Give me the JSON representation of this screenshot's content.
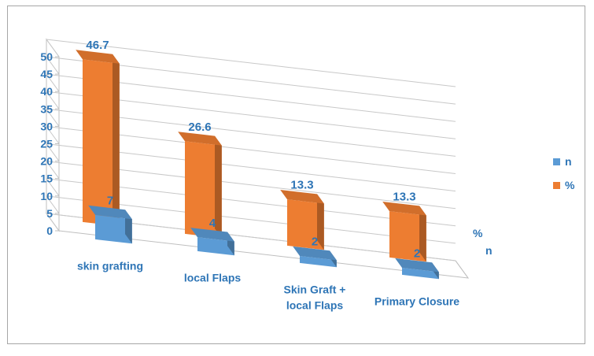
{
  "chart_data": {
    "type": "bar",
    "title": "",
    "xlabel": "",
    "ylabel": "",
    "ylim": [
      0,
      50
    ],
    "yticks": [
      "0",
      "5",
      "10",
      "15",
      "20",
      "25",
      "30",
      "35",
      "40",
      "45",
      "50"
    ],
    "categories": [
      [
        "skin grafting"
      ],
      [
        "local Flaps"
      ],
      [
        "Skin Graft +",
        "local Flaps"
      ],
      [
        "Primary Closure"
      ]
    ],
    "series": [
      {
        "name": "n",
        "values": [
          7,
          4,
          2,
          2
        ],
        "labels": [
          "7",
          "4",
          "2",
          "2"
        ],
        "color": "#5b9bd5"
      },
      {
        "name": "%",
        "values": [
          46.7,
          26.6,
          13.3,
          13.3
        ],
        "labels": [
          "46.7",
          "26.6",
          "13.3",
          "13.3"
        ],
        "color": "#ed7d31"
      }
    ],
    "depth_axis": [
      "n",
      "%"
    ],
    "grid": true,
    "legend": "right",
    "style": "3d-column"
  }
}
